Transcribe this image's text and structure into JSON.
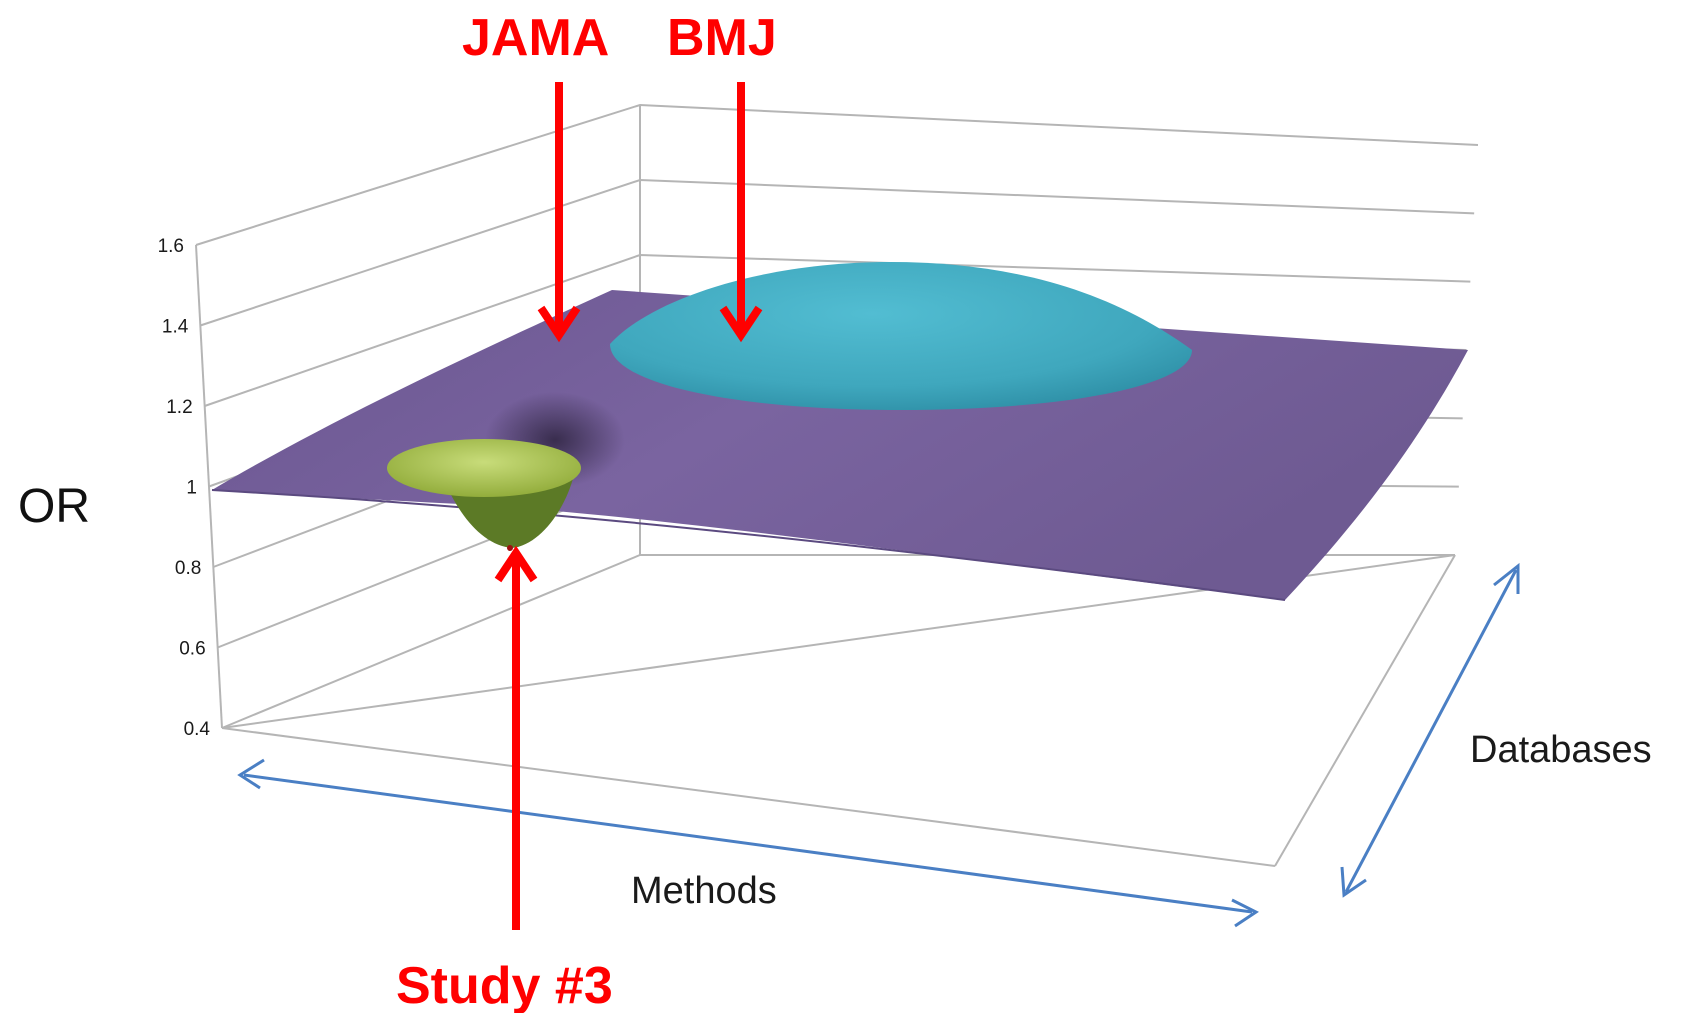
{
  "chart_data": {
    "type": "surface",
    "title": "",
    "zlabel": "OR",
    "xlabel": "Methods",
    "ylabel": "Databases",
    "zlim": [
      0.4,
      1.6
    ],
    "z_ticks": [
      "1.6",
      "1.4",
      "1.2",
      "1",
      "0.8",
      "0.6",
      "0.4"
    ],
    "baseline_value": 1,
    "features": [
      {
        "kind": "peak",
        "peak_value": 1.4,
        "color": "#3fa7bd"
      },
      {
        "kind": "trough",
        "min_value": 0.75,
        "color": "#a9c24f"
      }
    ],
    "surface_color": "#6f5a93",
    "grid": true,
    "annotations": [
      {
        "id": "jama",
        "text": "JAMA"
      },
      {
        "id": "bmj",
        "text": "BMJ"
      },
      {
        "id": "study3",
        "text": "Study #3"
      }
    ],
    "annotation_color": "#ff0000",
    "direction_arrow_color": "#4a7fc4"
  }
}
